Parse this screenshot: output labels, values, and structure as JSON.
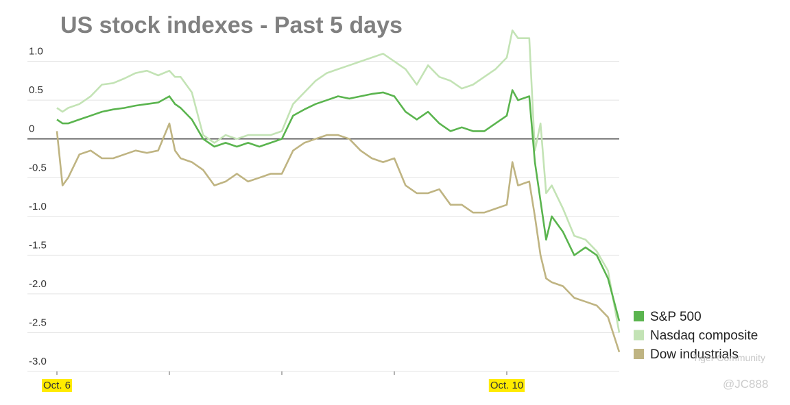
{
  "chart_data": {
    "type": "line",
    "title": "US stock indexes - Past 5 days",
    "x": [
      0,
      0.05,
      0.1,
      0.2,
      0.3,
      0.4,
      0.5,
      0.6,
      0.7,
      0.8,
      0.9,
      1.0,
      1.05,
      1.1,
      1.2,
      1.3,
      1.4,
      1.5,
      1.6,
      1.7,
      1.8,
      1.9,
      2.0,
      2.1,
      2.2,
      2.3,
      2.4,
      2.5,
      2.6,
      2.7,
      2.8,
      2.9,
      3.0,
      3.1,
      3.2,
      3.3,
      3.4,
      3.5,
      3.6,
      3.7,
      3.8,
      3.9,
      4.0,
      4.05,
      4.1,
      4.2,
      4.25,
      4.3,
      4.35,
      4.4,
      4.5,
      4.6,
      4.7,
      4.8,
      4.9,
      5.0
    ],
    "series": [
      {
        "name": "S&P 500",
        "color": "#5ab44e",
        "values": [
          0.25,
          0.2,
          0.2,
          0.25,
          0.3,
          0.35,
          0.38,
          0.4,
          0.43,
          0.45,
          0.47,
          0.55,
          0.45,
          0.4,
          0.25,
          0.0,
          -0.1,
          -0.05,
          -0.1,
          -0.05,
          -0.1,
          -0.05,
          0.0,
          0.3,
          0.38,
          0.45,
          0.5,
          0.55,
          0.52,
          0.55,
          0.58,
          0.6,
          0.55,
          0.35,
          0.25,
          0.35,
          0.2,
          0.1,
          0.15,
          0.1,
          0.1,
          0.2,
          0.3,
          0.63,
          0.5,
          0.55,
          -0.3,
          -0.8,
          -1.3,
          -1.0,
          -1.2,
          -1.5,
          -1.4,
          -1.5,
          -1.8,
          -2.35
        ]
      },
      {
        "name": "Nasdaq composite",
        "color": "#c3e3b5",
        "values": [
          0.4,
          0.35,
          0.4,
          0.45,
          0.55,
          0.7,
          0.72,
          0.78,
          0.85,
          0.88,
          0.82,
          0.88,
          0.8,
          0.8,
          0.6,
          0.05,
          -0.05,
          0.05,
          0.0,
          0.05,
          0.05,
          0.05,
          0.1,
          0.45,
          0.6,
          0.75,
          0.85,
          0.9,
          0.95,
          1.0,
          1.05,
          1.1,
          1.0,
          0.9,
          0.7,
          0.95,
          0.8,
          0.75,
          0.65,
          0.7,
          0.8,
          0.9,
          1.05,
          1.4,
          1.3,
          1.3,
          -0.15,
          0.2,
          -0.7,
          -0.6,
          -0.9,
          -1.25,
          -1.3,
          -1.45,
          -1.7,
          -2.5
        ]
      },
      {
        "name": "Dow industrials",
        "color": "#bfb482",
        "values": [
          0.1,
          -0.6,
          -0.5,
          -0.2,
          -0.15,
          -0.25,
          -0.25,
          -0.2,
          -0.15,
          -0.18,
          -0.15,
          0.2,
          -0.15,
          -0.25,
          -0.3,
          -0.4,
          -0.6,
          -0.55,
          -0.45,
          -0.55,
          -0.5,
          -0.45,
          -0.45,
          -0.15,
          -0.05,
          0.0,
          0.05,
          0.05,
          0.0,
          -0.15,
          -0.25,
          -0.3,
          -0.25,
          -0.6,
          -0.7,
          -0.7,
          -0.65,
          -0.85,
          -0.85,
          -0.95,
          -0.95,
          -0.9,
          -0.85,
          -0.3,
          -0.6,
          -0.55,
          -1.0,
          -1.5,
          -1.8,
          -1.85,
          -1.9,
          -2.05,
          -2.1,
          -2.15,
          -2.3,
          -2.75
        ]
      }
    ],
    "xlim": [
      0,
      5
    ],
    "xticks": [
      {
        "value": 0,
        "label": "Oct. 6"
      },
      {
        "value": 4,
        "label": "Oct. 10"
      }
    ],
    "xminorticks": [
      1,
      2,
      3
    ],
    "ylim": [
      -3,
      1.2
    ],
    "yticks": [
      {
        "value": 1,
        "label": "1.0"
      },
      0.5,
      0,
      -0.5,
      {
        "value": -1,
        "label": "-1.0"
      },
      -1.5,
      {
        "value": -2,
        "label": "-2.0"
      },
      -2.5,
      {
        "value": -3,
        "label": "-3.0"
      }
    ],
    "grid": true,
    "legend": "lower right",
    "watermark": [
      "Tiger Community",
      "@JC888"
    ]
  }
}
